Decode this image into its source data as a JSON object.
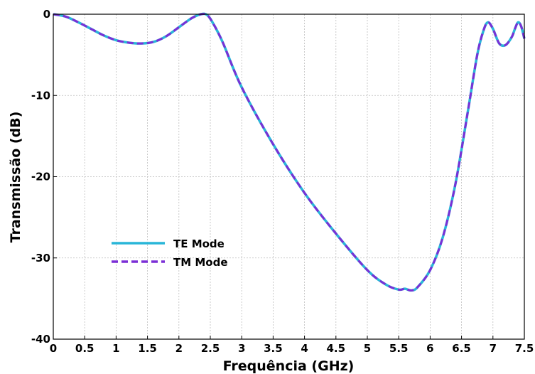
{
  "chart_data": {
    "type": "line",
    "title": "",
    "xlabel": "Frequência (GHz)",
    "ylabel": "Transmissão (dB)",
    "xlim": [
      0,
      7.5
    ],
    "ylim": [
      -40,
      0
    ],
    "x_ticks": [
      "0",
      "0.5",
      "1",
      "1.5",
      "2",
      "2.5",
      "3",
      "3.5",
      "4",
      "4.5",
      "5",
      "5.5",
      "6",
      "6.5",
      "7",
      "7.5"
    ],
    "y_ticks": [
      "0",
      "-10",
      "-20",
      "-30",
      "-40"
    ],
    "grid": true,
    "legend_position": "lower-left",
    "series": [
      {
        "name": "TE Mode",
        "color": "#29b6d8",
        "style": "solid",
        "x": [
          0,
          0.2,
          0.4,
          0.6,
          0.8,
          1.0,
          1.2,
          1.4,
          1.6,
          1.8,
          2.0,
          2.2,
          2.35,
          2.45,
          2.55,
          2.7,
          3.0,
          3.5,
          4.0,
          4.5,
          5.0,
          5.3,
          5.5,
          5.6,
          5.7,
          5.8,
          6.0,
          6.2,
          6.4,
          6.6,
          6.75,
          6.85,
          6.92,
          7.0,
          7.1,
          7.2,
          7.3,
          7.35,
          7.4,
          7.45,
          7.5
        ],
        "y": [
          0,
          -0.3,
          -1.0,
          -1.8,
          -2.6,
          -3.2,
          -3.5,
          -3.6,
          -3.4,
          -2.7,
          -1.6,
          -0.5,
          0,
          -0.1,
          -1.2,
          -3.5,
          -9.0,
          -16.0,
          -22.0,
          -27.0,
          -31.5,
          -33.3,
          -33.9,
          -33.8,
          -34.0,
          -33.6,
          -31.5,
          -27.5,
          -21.0,
          -12.0,
          -5.0,
          -2.0,
          -1.0,
          -1.8,
          -3.6,
          -3.8,
          -2.8,
          -1.8,
          -1.0,
          -1.5,
          -3.0
        ]
      },
      {
        "name": "TM Mode",
        "color": "#7b2fd6",
        "style": "dashed",
        "x": [
          0,
          0.2,
          0.4,
          0.6,
          0.8,
          1.0,
          1.2,
          1.4,
          1.6,
          1.8,
          2.0,
          2.2,
          2.35,
          2.45,
          2.55,
          2.7,
          3.0,
          3.5,
          4.0,
          4.5,
          5.0,
          5.3,
          5.5,
          5.6,
          5.7,
          5.8,
          6.0,
          6.2,
          6.4,
          6.6,
          6.75,
          6.85,
          6.92,
          7.0,
          7.1,
          7.2,
          7.3,
          7.35,
          7.4,
          7.45,
          7.5
        ],
        "y": [
          0,
          -0.3,
          -1.0,
          -1.8,
          -2.6,
          -3.2,
          -3.5,
          -3.6,
          -3.4,
          -2.7,
          -1.6,
          -0.5,
          0,
          -0.1,
          -1.2,
          -3.5,
          -9.0,
          -16.0,
          -22.0,
          -27.0,
          -31.5,
          -33.3,
          -33.9,
          -33.8,
          -34.0,
          -33.6,
          -31.5,
          -27.5,
          -21.0,
          -12.0,
          -5.0,
          -2.0,
          -1.0,
          -1.8,
          -3.6,
          -3.8,
          -2.8,
          -1.8,
          -1.0,
          -1.5,
          -3.0
        ]
      }
    ]
  }
}
